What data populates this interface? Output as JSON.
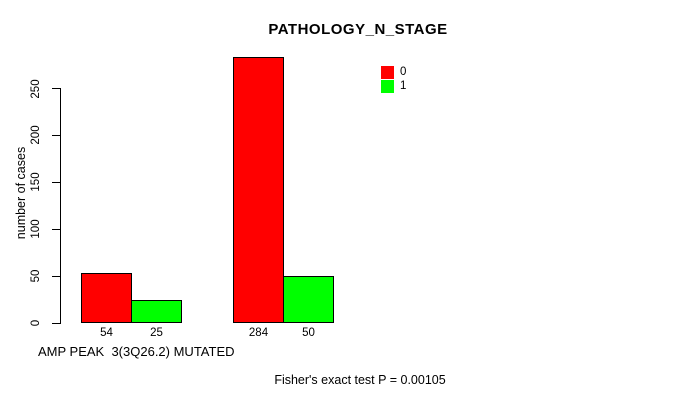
{
  "chart_data": {
    "type": "bar",
    "title": "PATHOLOGY_N_STAGE",
    "ylabel": "number of cases",
    "xlabel": "AMP PEAK  3(3Q26.2) MUTATED",
    "ylim": [
      0,
      250
    ],
    "yticks": [
      0,
      50,
      100,
      150,
      200,
      250
    ],
    "grid": false,
    "series": [
      {
        "name": "0",
        "color": "#ff0000",
        "values": [
          54,
          284
        ],
        "value_labels": [
          "54",
          "284"
        ]
      },
      {
        "name": "1",
        "color": "#00ff00",
        "values": [
          25,
          50
        ],
        "value_labels": [
          "25",
          "50"
        ]
      }
    ],
    "legend": {
      "position": "top-right",
      "entries": [
        {
          "label": "0",
          "color": "#ff0000"
        },
        {
          "label": "1",
          "color": "#00ff00"
        }
      ]
    },
    "annotation": "Fisher's exact test P = 0.00105"
  }
}
